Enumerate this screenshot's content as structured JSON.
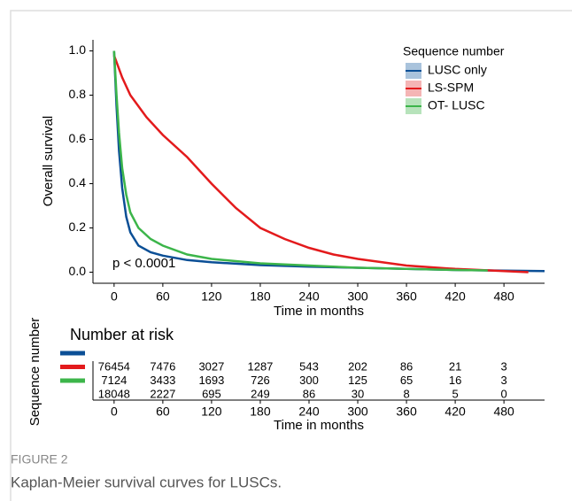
{
  "chart_data": {
    "type": "line",
    "ylabel": "Overall survival",
    "xlabel": "Time in months",
    "annotation": "p < 0.0001",
    "legend_title": "Sequence number",
    "legend": "top-right",
    "xlim": [
      -26,
      530
    ],
    "ylim": [
      -0.05,
      1.05
    ],
    "xticks": [
      0,
      60,
      120,
      180,
      240,
      300,
      360,
      420,
      480
    ],
    "yticks": [
      {
        "value": 0,
        "label": "0.0"
      },
      0.2,
      0.4,
      0.6,
      0.8,
      {
        "value": 1,
        "label": "1.0"
      }
    ],
    "series": [
      {
        "name": "LUSC only",
        "color": "#0b4f96",
        "fill": "#a9c3dc",
        "x": [
          0,
          3,
          6,
          10,
          15,
          20,
          30,
          45,
          60,
          90,
          120,
          180,
          240,
          300,
          360,
          420,
          480,
          530
        ],
        "values": [
          1.0,
          0.75,
          0.55,
          0.38,
          0.25,
          0.18,
          0.12,
          0.09,
          0.075,
          0.055,
          0.045,
          0.032,
          0.025,
          0.02,
          0.015,
          0.01,
          0.007,
          0.005
        ]
      },
      {
        "name": "LS-SPM",
        "color": "#e31a1c",
        "fill": "#f5b5b5",
        "x": [
          0,
          10,
          20,
          40,
          60,
          90,
          120,
          150,
          180,
          210,
          240,
          270,
          300,
          360,
          420,
          480,
          510
        ],
        "values": [
          0.98,
          0.88,
          0.8,
          0.7,
          0.62,
          0.52,
          0.4,
          0.29,
          0.2,
          0.15,
          0.11,
          0.08,
          0.06,
          0.03,
          0.015,
          0.005,
          0.0
        ]
      },
      {
        "name": "OT- LUSC",
        "color": "#3cb54a",
        "fill": "#b7e3bb",
        "x": [
          0,
          3,
          6,
          10,
          15,
          20,
          30,
          45,
          60,
          90,
          120,
          180,
          240,
          300,
          360,
          420,
          460
        ],
        "values": [
          1.0,
          0.8,
          0.63,
          0.47,
          0.35,
          0.27,
          0.2,
          0.15,
          0.12,
          0.08,
          0.06,
          0.04,
          0.03,
          0.02,
          0.015,
          0.01,
          0.008
        ]
      }
    ],
    "risk_table": {
      "title": "Number at risk",
      "xlabel": "Time in months",
      "ylabel": "Sequence number",
      "xticks": [
        0,
        60,
        120,
        180,
        240,
        300,
        360,
        420,
        480
      ],
      "rows": [
        [
          "76454",
          "7476",
          "3027",
          "1287",
          "543",
          "202",
          "86",
          "21",
          "3"
        ],
        [
          "7124",
          "3433",
          "1693",
          "726",
          "300",
          "125",
          "65",
          "16",
          "3"
        ],
        [
          "18048",
          "2227",
          "695",
          "249",
          "86",
          "30",
          "8",
          "5",
          "0"
        ]
      ]
    }
  },
  "caption": {
    "label": "FIGURE 2",
    "text": "Kaplan-Meier survival curves for LUSCs."
  }
}
